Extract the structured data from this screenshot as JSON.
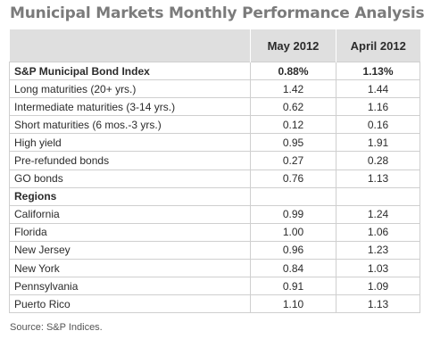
{
  "title": "Municipal Markets Monthly Performance Analysis",
  "table": {
    "headers": [
      "",
      "May 2012",
      "April 2012"
    ],
    "rows": [
      {
        "label": "S&P Municipal Bond Index",
        "may": "0.88%",
        "april": "1.13%",
        "bold": true
      },
      {
        "label": "Long maturities (20+ yrs.)",
        "may": "1.42",
        "april": "1.44",
        "bold": false
      },
      {
        "label": "Intermediate maturities (3-14 yrs.)",
        "may": "0.62",
        "april": "1.16",
        "bold": false
      },
      {
        "label": "Short maturities (6 mos.-3 yrs.)",
        "may": "0.12",
        "april": "0.16",
        "bold": false
      },
      {
        "label": "High yield",
        "may": "0.95",
        "april": "1.91",
        "bold": false
      },
      {
        "label": "Pre-refunded bonds",
        "may": "0.27",
        "april": "0.28",
        "bold": false
      },
      {
        "label": "GO bonds",
        "may": "0.76",
        "april": "1.13",
        "bold": false
      },
      {
        "label": "Regions",
        "may": "",
        "april": "",
        "bold": true
      },
      {
        "label": "California",
        "may": "0.99",
        "april": "1.24",
        "bold": false
      },
      {
        "label": "Florida",
        "may": "1.00",
        "april": "1.06",
        "bold": false
      },
      {
        "label": "New Jersey",
        "may": "0.96",
        "april": "1.23",
        "bold": false
      },
      {
        "label": "New York",
        "may": "0.84",
        "april": "1.03",
        "bold": false
      },
      {
        "label": "Pennsylvania",
        "may": "0.91",
        "april": "1.09",
        "bold": false
      },
      {
        "label": "Puerto Rico",
        "may": "1.10",
        "april": "1.13",
        "bold": false
      }
    ]
  },
  "source": "Source: S&P Indices."
}
